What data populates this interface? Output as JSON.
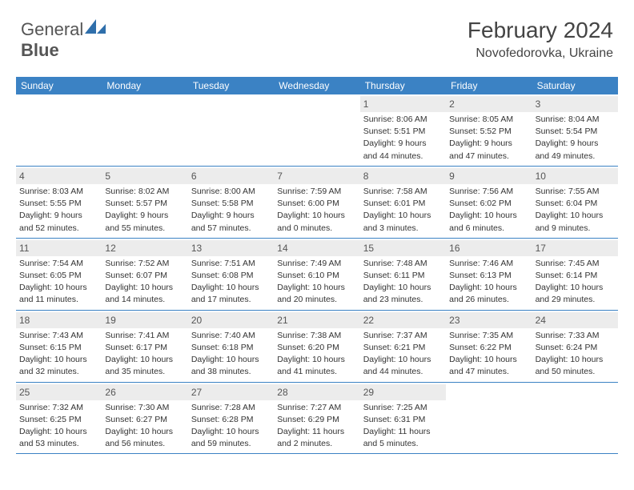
{
  "logo": {
    "text1": "General",
    "text2": "Blue"
  },
  "header": {
    "title": "February 2024",
    "location": "Novofedorovka, Ukraine"
  },
  "weekdays": [
    "Sunday",
    "Monday",
    "Tuesday",
    "Wednesday",
    "Thursday",
    "Friday",
    "Saturday"
  ],
  "colors": {
    "header_bar": "#3b82c4",
    "daynum_bg": "#ececec",
    "rule": "#3b82c4",
    "logo_shape": "#2f6fab"
  },
  "weeks": [
    [
      {
        "n": "",
        "sr": "",
        "ss": "",
        "d1": "",
        "d2": "",
        "empty": true
      },
      {
        "n": "",
        "sr": "",
        "ss": "",
        "d1": "",
        "d2": "",
        "empty": true
      },
      {
        "n": "",
        "sr": "",
        "ss": "",
        "d1": "",
        "d2": "",
        "empty": true
      },
      {
        "n": "",
        "sr": "",
        "ss": "",
        "d1": "",
        "d2": "",
        "empty": true
      },
      {
        "n": "1",
        "sr": "Sunrise: 8:06 AM",
        "ss": "Sunset: 5:51 PM",
        "d1": "Daylight: 9 hours",
        "d2": "and 44 minutes."
      },
      {
        "n": "2",
        "sr": "Sunrise: 8:05 AM",
        "ss": "Sunset: 5:52 PM",
        "d1": "Daylight: 9 hours",
        "d2": "and 47 minutes."
      },
      {
        "n": "3",
        "sr": "Sunrise: 8:04 AM",
        "ss": "Sunset: 5:54 PM",
        "d1": "Daylight: 9 hours",
        "d2": "and 49 minutes."
      }
    ],
    [
      {
        "n": "4",
        "sr": "Sunrise: 8:03 AM",
        "ss": "Sunset: 5:55 PM",
        "d1": "Daylight: 9 hours",
        "d2": "and 52 minutes."
      },
      {
        "n": "5",
        "sr": "Sunrise: 8:02 AM",
        "ss": "Sunset: 5:57 PM",
        "d1": "Daylight: 9 hours",
        "d2": "and 55 minutes."
      },
      {
        "n": "6",
        "sr": "Sunrise: 8:00 AM",
        "ss": "Sunset: 5:58 PM",
        "d1": "Daylight: 9 hours",
        "d2": "and 57 minutes."
      },
      {
        "n": "7",
        "sr": "Sunrise: 7:59 AM",
        "ss": "Sunset: 6:00 PM",
        "d1": "Daylight: 10 hours",
        "d2": "and 0 minutes."
      },
      {
        "n": "8",
        "sr": "Sunrise: 7:58 AM",
        "ss": "Sunset: 6:01 PM",
        "d1": "Daylight: 10 hours",
        "d2": "and 3 minutes."
      },
      {
        "n": "9",
        "sr": "Sunrise: 7:56 AM",
        "ss": "Sunset: 6:02 PM",
        "d1": "Daylight: 10 hours",
        "d2": "and 6 minutes."
      },
      {
        "n": "10",
        "sr": "Sunrise: 7:55 AM",
        "ss": "Sunset: 6:04 PM",
        "d1": "Daylight: 10 hours",
        "d2": "and 9 minutes."
      }
    ],
    [
      {
        "n": "11",
        "sr": "Sunrise: 7:54 AM",
        "ss": "Sunset: 6:05 PM",
        "d1": "Daylight: 10 hours",
        "d2": "and 11 minutes."
      },
      {
        "n": "12",
        "sr": "Sunrise: 7:52 AM",
        "ss": "Sunset: 6:07 PM",
        "d1": "Daylight: 10 hours",
        "d2": "and 14 minutes."
      },
      {
        "n": "13",
        "sr": "Sunrise: 7:51 AM",
        "ss": "Sunset: 6:08 PM",
        "d1": "Daylight: 10 hours",
        "d2": "and 17 minutes."
      },
      {
        "n": "14",
        "sr": "Sunrise: 7:49 AM",
        "ss": "Sunset: 6:10 PM",
        "d1": "Daylight: 10 hours",
        "d2": "and 20 minutes."
      },
      {
        "n": "15",
        "sr": "Sunrise: 7:48 AM",
        "ss": "Sunset: 6:11 PM",
        "d1": "Daylight: 10 hours",
        "d2": "and 23 minutes."
      },
      {
        "n": "16",
        "sr": "Sunrise: 7:46 AM",
        "ss": "Sunset: 6:13 PM",
        "d1": "Daylight: 10 hours",
        "d2": "and 26 minutes."
      },
      {
        "n": "17",
        "sr": "Sunrise: 7:45 AM",
        "ss": "Sunset: 6:14 PM",
        "d1": "Daylight: 10 hours",
        "d2": "and 29 minutes."
      }
    ],
    [
      {
        "n": "18",
        "sr": "Sunrise: 7:43 AM",
        "ss": "Sunset: 6:15 PM",
        "d1": "Daylight: 10 hours",
        "d2": "and 32 minutes."
      },
      {
        "n": "19",
        "sr": "Sunrise: 7:41 AM",
        "ss": "Sunset: 6:17 PM",
        "d1": "Daylight: 10 hours",
        "d2": "and 35 minutes."
      },
      {
        "n": "20",
        "sr": "Sunrise: 7:40 AM",
        "ss": "Sunset: 6:18 PM",
        "d1": "Daylight: 10 hours",
        "d2": "and 38 minutes."
      },
      {
        "n": "21",
        "sr": "Sunrise: 7:38 AM",
        "ss": "Sunset: 6:20 PM",
        "d1": "Daylight: 10 hours",
        "d2": "and 41 minutes."
      },
      {
        "n": "22",
        "sr": "Sunrise: 7:37 AM",
        "ss": "Sunset: 6:21 PM",
        "d1": "Daylight: 10 hours",
        "d2": "and 44 minutes."
      },
      {
        "n": "23",
        "sr": "Sunrise: 7:35 AM",
        "ss": "Sunset: 6:22 PM",
        "d1": "Daylight: 10 hours",
        "d2": "and 47 minutes."
      },
      {
        "n": "24",
        "sr": "Sunrise: 7:33 AM",
        "ss": "Sunset: 6:24 PM",
        "d1": "Daylight: 10 hours",
        "d2": "and 50 minutes."
      }
    ],
    [
      {
        "n": "25",
        "sr": "Sunrise: 7:32 AM",
        "ss": "Sunset: 6:25 PM",
        "d1": "Daylight: 10 hours",
        "d2": "and 53 minutes."
      },
      {
        "n": "26",
        "sr": "Sunrise: 7:30 AM",
        "ss": "Sunset: 6:27 PM",
        "d1": "Daylight: 10 hours",
        "d2": "and 56 minutes."
      },
      {
        "n": "27",
        "sr": "Sunrise: 7:28 AM",
        "ss": "Sunset: 6:28 PM",
        "d1": "Daylight: 10 hours",
        "d2": "and 59 minutes."
      },
      {
        "n": "28",
        "sr": "Sunrise: 7:27 AM",
        "ss": "Sunset: 6:29 PM",
        "d1": "Daylight: 11 hours",
        "d2": "and 2 minutes."
      },
      {
        "n": "29",
        "sr": "Sunrise: 7:25 AM",
        "ss": "Sunset: 6:31 PM",
        "d1": "Daylight: 11 hours",
        "d2": "and 5 minutes."
      },
      {
        "n": "",
        "sr": "",
        "ss": "",
        "d1": "",
        "d2": "",
        "empty": true
      },
      {
        "n": "",
        "sr": "",
        "ss": "",
        "d1": "",
        "d2": "",
        "empty": true
      }
    ]
  ]
}
